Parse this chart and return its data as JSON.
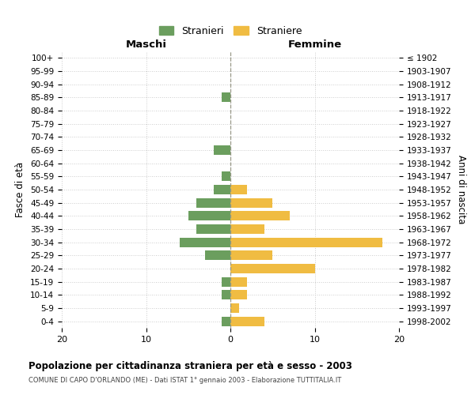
{
  "age_groups": [
    "100+",
    "95-99",
    "90-94",
    "85-89",
    "80-84",
    "75-79",
    "70-74",
    "65-69",
    "60-64",
    "55-59",
    "50-54",
    "45-49",
    "40-44",
    "35-39",
    "30-34",
    "25-29",
    "20-24",
    "15-19",
    "10-14",
    "5-9",
    "0-4"
  ],
  "birth_years": [
    "≤ 1902",
    "1903-1907",
    "1908-1912",
    "1913-1917",
    "1918-1922",
    "1923-1927",
    "1928-1932",
    "1933-1937",
    "1938-1942",
    "1943-1947",
    "1948-1952",
    "1953-1957",
    "1958-1962",
    "1963-1967",
    "1968-1972",
    "1973-1977",
    "1978-1982",
    "1983-1987",
    "1988-1992",
    "1993-1997",
    "1998-2002"
  ],
  "stranieri": [
    0,
    0,
    0,
    1,
    0,
    0,
    0,
    2,
    0,
    1,
    2,
    4,
    5,
    4,
    6,
    3,
    0,
    1,
    1,
    0,
    1
  ],
  "straniere": [
    0,
    0,
    0,
    0,
    0,
    0,
    0,
    0,
    0,
    0,
    2,
    5,
    7,
    4,
    18,
    5,
    10,
    2,
    2,
    1,
    4
  ],
  "color_stranieri": "#6b9e5e",
  "color_straniere": "#f0bc42",
  "xlim": 20,
  "title": "Popolazione per cittadinanza straniera per età e sesso - 2003",
  "subtitle": "COMUNE DI CAPO D'ORLANDO (ME) - Dati ISTAT 1° gennaio 2003 - Elaborazione TUTTITALIA.IT",
  "xlabel_left": "Maschi",
  "xlabel_right": "Femmine",
  "ylabel_left": "Fasce di età",
  "ylabel_right": "Anni di nascita",
  "legend_stranieri": "Stranieri",
  "legend_straniere": "Straniere",
  "bg_color": "#ffffff",
  "grid_color": "#cccccc"
}
